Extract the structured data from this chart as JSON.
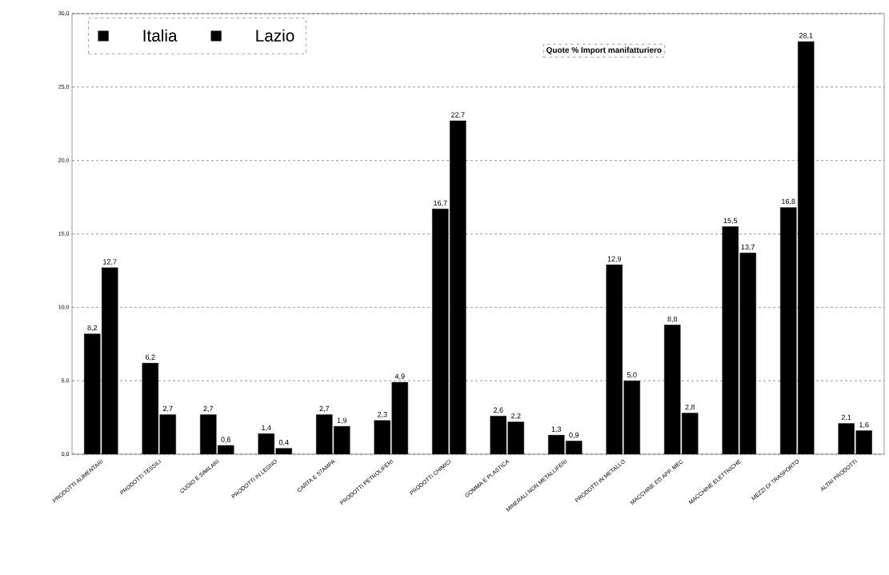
{
  "chart_data": {
    "type": "bar",
    "title": "Quote % Import manifatturiero",
    "categories": [
      "PRODOTTI ALIMENTARI",
      "PRODOTTI TESSILI",
      "CUOIO E SIMILARI",
      "PRODOTTI IN LEGNO",
      "CARTA E STAMPA",
      "PRODOTTI PETROLIFERI",
      "PRODOTTI CHIMICI",
      "GOMMA E PLASTICA",
      "MINERALI NON METALLIFERI",
      "PRODOTTI IN METALLO",
      "MACCHINE ED APP. MEC",
      "MACCHINE ELETTRICHE",
      "MEZZI DI TRASPORTO",
      "ALTRI PRODOTTI"
    ],
    "series": [
      {
        "name": "Italia",
        "color": "#000000",
        "values": [
          8.2,
          6.2,
          2.7,
          1.4,
          2.7,
          2.3,
          16.7,
          2.6,
          1.3,
          12.9,
          8.8,
          15.5,
          16.8,
          2.1
        ],
        "value_labels": [
          "8,2",
          "6,2",
          "2,7",
          "1,4",
          "2,7",
          "2,3",
          "16,7",
          "2,6",
          "1,3",
          "12,9",
          "8,8",
          "15,5",
          "16,8",
          "2,1"
        ]
      },
      {
        "name": "Lazio",
        "color": "#000000",
        "values": [
          12.7,
          2.7,
          0.6,
          0.4,
          1.9,
          4.9,
          22.7,
          2.2,
          0.9,
          5.0,
          2.8,
          13.7,
          28.1,
          1.6
        ],
        "value_labels": [
          "12,7",
          "2,7",
          "0,6",
          "0,4",
          "1,9",
          "4,9",
          "22,7",
          "2,2",
          "0,9",
          "5,0",
          "2,8",
          "13,7",
          "28,1",
          "1,6"
        ]
      }
    ],
    "ylim": [
      0,
      30
    ],
    "yticks": [
      {
        "value": 0,
        "label": "0,0"
      },
      {
        "value": 5,
        "label": "5,0"
      },
      {
        "value": 10,
        "label": "10,0"
      },
      {
        "value": 15,
        "label": "15,0"
      },
      {
        "value": 20,
        "label": "20,0"
      },
      {
        "value": 25,
        "label": "25,0"
      },
      {
        "value": 30,
        "label": "30,0"
      }
    ],
    "grid": "y",
    "legend": "top left"
  }
}
